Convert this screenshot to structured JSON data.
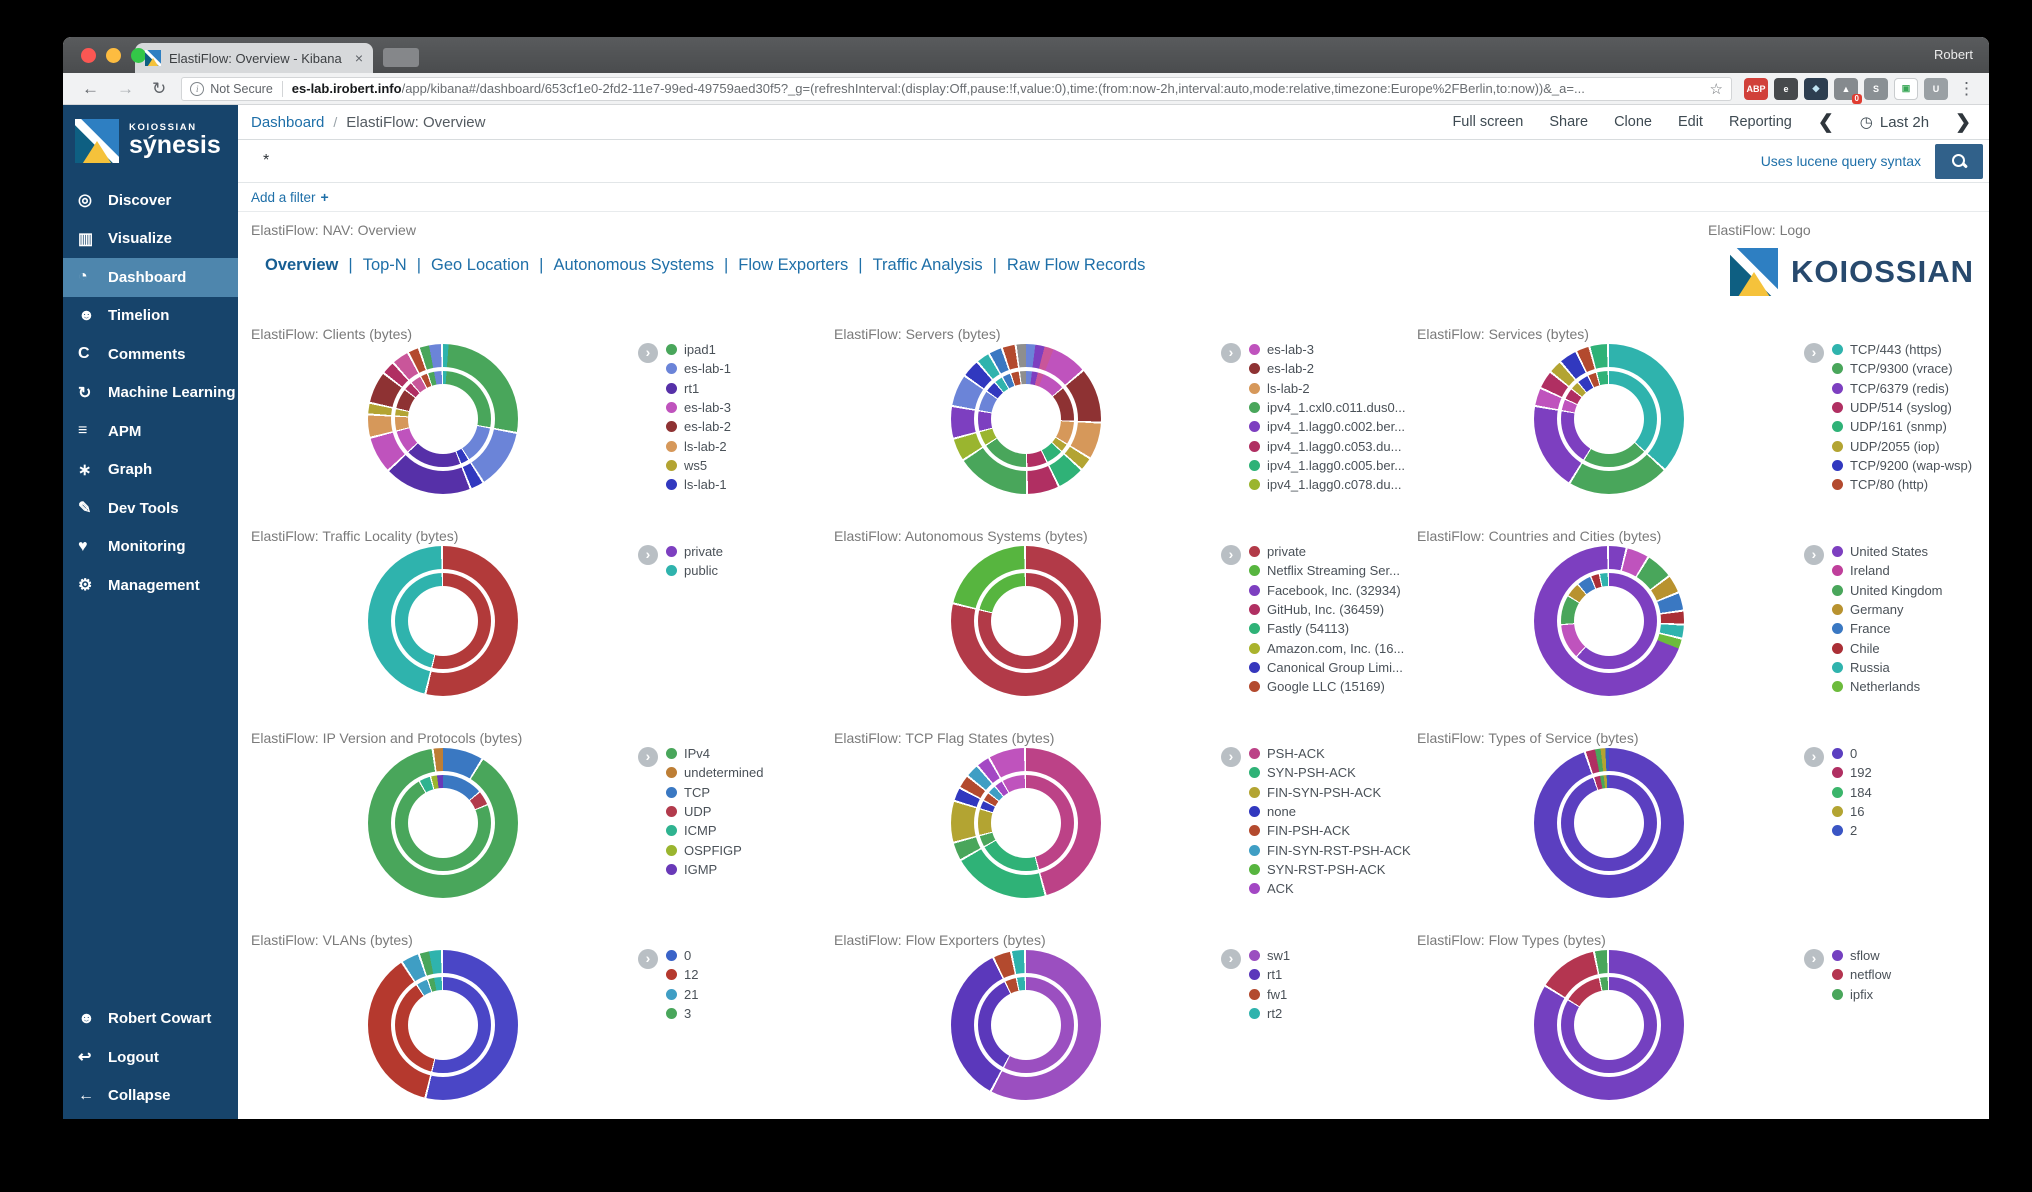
{
  "browser": {
    "tab_title": "ElastiFlow: Overview - Kibana",
    "tab_close": "×",
    "profile_name": "Robert",
    "security_label": "Not Secure",
    "url_host": "es-lab.irobert.info",
    "url_path": "/app/kibana#/dashboard/653cf1e0-2fd2-11e7-99ed-49759aed30f5?_g=(refreshInterval:(display:Off,pause:!f,value:0),time:(from:now-2h,interval:auto,mode:relative,timezone:Europe%2FBerlin,to:now))&_a=...",
    "star_glyph": "☆",
    "back_glyph": "←",
    "forward_glyph": "→",
    "reload_glyph": "↻",
    "menu_glyph": "⋮",
    "extensions": [
      {
        "name": "adblock-plus",
        "bg": "#d1403a",
        "fg": "#ffffff",
        "glyph": "ABP"
      },
      {
        "name": "evernote",
        "bg": "#46494c",
        "fg": "#ffffff",
        "glyph": "e"
      },
      {
        "name": "dark-shield",
        "bg": "#2d3e50",
        "fg": "#bfe3f2",
        "glyph": "◆"
      },
      {
        "name": "badge-zero",
        "bg": "#858a8e",
        "fg": "#ffffff",
        "glyph": "▲",
        "badge": "0"
      },
      {
        "name": "skype",
        "bg": "#8a9094",
        "fg": "#ffffff",
        "glyph": "S"
      },
      {
        "name": "screen-capture",
        "bg": "#ffffff",
        "fg": "#3aa757",
        "glyph": "▣"
      },
      {
        "name": "u-circle",
        "bg": "#9aa0a4",
        "fg": "#ffffff",
        "glyph": "U"
      }
    ]
  },
  "sidebar": {
    "brand_top": "KOIOSSIAN",
    "brand_name": "sýnesis",
    "items": [
      {
        "id": "discover",
        "label": "Discover",
        "glyph": "◎",
        "icon": "discover-icon",
        "active": false
      },
      {
        "id": "visualize",
        "label": "Visualize",
        "glyph": "▥",
        "icon": "visualize-icon",
        "active": false
      },
      {
        "id": "dashboard",
        "label": "Dashboard",
        "glyph": "◔",
        "icon": "dashboard-icon",
        "active": true
      },
      {
        "id": "timelion",
        "label": "Timelion",
        "glyph": "☻",
        "icon": "timelion-icon",
        "active": false
      },
      {
        "id": "comments",
        "label": "Comments",
        "glyph": "C",
        "icon": "comments-icon",
        "active": false
      },
      {
        "id": "machine-learning",
        "label": "Machine Learning",
        "glyph": "↻",
        "icon": "machine-learning-icon",
        "active": false
      },
      {
        "id": "apm",
        "label": "APM",
        "glyph": "≡",
        "icon": "apm-icon",
        "active": false
      },
      {
        "id": "graph",
        "label": "Graph",
        "glyph": "∗",
        "icon": "graph-icon",
        "active": false
      },
      {
        "id": "dev-tools",
        "label": "Dev Tools",
        "glyph": "✎",
        "icon": "dev-tools-icon",
        "active": false
      },
      {
        "id": "monitoring",
        "label": "Monitoring",
        "glyph": "♥",
        "icon": "monitoring-icon",
        "active": false
      },
      {
        "id": "management",
        "label": "Management",
        "glyph": "⚙",
        "icon": "management-icon",
        "active": false
      }
    ],
    "footer": [
      {
        "id": "user",
        "label": "Robert Cowart",
        "glyph": "☻",
        "icon": "user-icon"
      },
      {
        "id": "logout",
        "label": "Logout",
        "glyph": "↩",
        "icon": "logout-icon"
      },
      {
        "id": "collapse",
        "label": "Collapse",
        "glyph": "←",
        "icon": "collapse-icon"
      }
    ]
  },
  "topnav": {
    "breadcrumb_root": "Dashboard",
    "breadcrumb_sep": "/",
    "breadcrumb_current": "ElastiFlow: Overview",
    "actions": [
      "Full screen",
      "Share",
      "Clone",
      "Edit",
      "Reporting"
    ],
    "time_prev": "❮",
    "time_next": "❯",
    "clock_glyph": "◷",
    "time_label": "Last 2h"
  },
  "query": {
    "value": "*",
    "hint": "Uses lucene query syntax"
  },
  "filter": {
    "add_label": "Add a filter",
    "plus": "+"
  },
  "nav_panel": {
    "title": "ElastiFlow: NAV: Overview",
    "active": "Overview",
    "links": [
      "Overview",
      "Top-N",
      "Geo Location",
      "Autonomous Systems",
      "Flow Exporters",
      "Traffic Analysis",
      "Raw Flow Records"
    ]
  },
  "logo_panel": {
    "title": "ElastiFlow: Logo",
    "brand": "KOIOSSIAN"
  },
  "accent_colors": {
    "link_blue": "#1e6fa8",
    "sidebar_navy": "#17446b",
    "sidebar_active": "#4e86ad",
    "search_button": "#31618a"
  },
  "charts": [
    {
      "id": "clients",
      "title": "ElastiFlow: Clients (bytes)",
      "type": "donut",
      "legend": [
        {
          "label": "ipad1",
          "color": "#49a65b"
        },
        {
          "label": "es-lab-1",
          "color": "#6b84d8"
        },
        {
          "label": "rt1",
          "color": "#5630a8"
        },
        {
          "label": "es-lab-3",
          "color": "#bf53bd"
        },
        {
          "label": "es-lab-2",
          "color": "#8e3233"
        },
        {
          "label": "ls-lab-2",
          "color": "#d6985a"
        },
        {
          "label": "ws5",
          "color": "#b3a432"
        },
        {
          "label": "ls-lab-1",
          "color": "#3138bf"
        }
      ],
      "outer": [
        [
          "#2fb3ad",
          1.2
        ],
        [
          "#49a65b",
          27
        ],
        [
          "#6b84d8",
          13
        ],
        [
          "#3138bf",
          3
        ],
        [
          "#5630a8",
          19
        ],
        [
          "#bf53bd",
          8
        ],
        [
          "#d6985a",
          5
        ],
        [
          "#b3a432",
          2.5
        ],
        [
          "#8e3233",
          7
        ],
        [
          "#b02f62",
          3
        ],
        [
          "#c9569a",
          3.8
        ],
        [
          "#b34a2e",
          2.5
        ],
        [
          "#49a65b",
          2
        ],
        [
          "#6b84d8",
          3
        ]
      ]
    },
    {
      "id": "servers",
      "title": "ElastiFlow: Servers (bytes)",
      "type": "donut",
      "legend": [
        {
          "label": "es-lab-3",
          "color": "#bf53bd"
        },
        {
          "label": "es-lab-2",
          "color": "#8e3233"
        },
        {
          "label": "ls-lab-2",
          "color": "#d6985a"
        },
        {
          "label": "ipv4_1.cxl0.c011.dus0...",
          "color": "#49a65b"
        },
        {
          "label": "ipv4_1.lagg0.c002.ber...",
          "color": "#7d3fc0"
        },
        {
          "label": "ipv4_1.lagg0.c053.du...",
          "color": "#b02f62"
        },
        {
          "label": "ipv4_1.lagg0.c005.ber...",
          "color": "#2fb277"
        },
        {
          "label": "ipv4_1.lagg0.c078.du...",
          "color": "#9ab52f"
        }
      ],
      "outer": [
        [
          "#6b84d8",
          2
        ],
        [
          "#7d3fc0",
          2
        ],
        [
          "#c9569a",
          2
        ],
        [
          "#bf53bd",
          8
        ],
        [
          "#8e3233",
          12
        ],
        [
          "#d6985a",
          8
        ],
        [
          "#b3a432",
          3
        ],
        [
          "#2fb277",
          6
        ],
        [
          "#b02f62",
          7
        ],
        [
          "#49a65b",
          16
        ],
        [
          "#9ab52f",
          5
        ],
        [
          "#7d3fc0",
          7
        ],
        [
          "#6b84d8",
          7
        ],
        [
          "#3138bf",
          4
        ],
        [
          "#2fb3ad",
          3
        ],
        [
          "#3a78c2",
          3
        ],
        [
          "#b34a2e",
          3
        ],
        [
          "#8e8e8e",
          2
        ]
      ]
    },
    {
      "id": "services",
      "title": "ElastiFlow: Services (bytes)",
      "type": "donut",
      "legend": [
        {
          "label": "TCP/443 (https)",
          "color": "#2fb3ad"
        },
        {
          "label": "TCP/9300 (vrace)",
          "color": "#49a65b"
        },
        {
          "label": "TCP/6379 (redis)",
          "color": "#7d3fc0"
        },
        {
          "label": "UDP/514 (syslog)",
          "color": "#b02f62"
        },
        {
          "label": "UDP/161 (snmp)",
          "color": "#2fb277"
        },
        {
          "label": "UDP/2055 (iop)",
          "color": "#b3a432"
        },
        {
          "label": "TCP/9200 (wap-wsp)",
          "color": "#3138bf"
        },
        {
          "label": "TCP/80 (http)",
          "color": "#b34a2e"
        }
      ],
      "outer": [
        [
          "#2fb3ad",
          37
        ],
        [
          "#49a65b",
          22
        ],
        [
          "#7d3fc0",
          19
        ],
        [
          "#bf53bd",
          4
        ],
        [
          "#b02f62",
          4
        ],
        [
          "#b3a432",
          3
        ],
        [
          "#3138bf",
          4
        ],
        [
          "#b34a2e",
          3
        ],
        [
          "#2fb277",
          4
        ]
      ]
    },
    {
      "id": "traffic-locality",
      "title": "ElastiFlow: Traffic Locality (bytes)",
      "type": "donut",
      "legend": [
        {
          "label": "private",
          "color": "#7d3fc0"
        },
        {
          "label": "public",
          "color": "#2fb3ad"
        }
      ],
      "outer": [
        [
          "#b23a3a",
          54
        ],
        [
          "#2fb3ad",
          46
        ]
      ]
    },
    {
      "id": "autonomous-systems",
      "title": "ElastiFlow: Autonomous Systems (bytes)",
      "type": "donut",
      "legend": [
        {
          "label": "private",
          "color": "#b23a48"
        },
        {
          "label": "Netflix Streaming Ser...",
          "color": "#57b53f"
        },
        {
          "label": "Facebook, Inc. (32934)",
          "color": "#7d3fc0"
        },
        {
          "label": "GitHub, Inc. (36459)",
          "color": "#b02f62"
        },
        {
          "label": "Fastly (54113)",
          "color": "#2fb277"
        },
        {
          "label": "Amazon.com, Inc. (16...",
          "color": "#aab32d"
        },
        {
          "label": "Canonical Group Limi...",
          "color": "#3637bd"
        },
        {
          "label": "Google LLC (15169)",
          "color": "#b34a2e"
        }
      ],
      "outer": [
        [
          "#b23a48",
          79
        ],
        [
          "#57b53f",
          21
        ]
      ]
    },
    {
      "id": "countries-cities",
      "title": "ElastiFlow: Countries and Cities (bytes)",
      "type": "donut",
      "legend": [
        {
          "label": "United States",
          "color": "#7d3fc0"
        },
        {
          "label": "Ireland",
          "color": "#bf3f9b"
        },
        {
          "label": "United Kingdom",
          "color": "#49a65b"
        },
        {
          "label": "Germany",
          "color": "#b8922f"
        },
        {
          "label": "France",
          "color": "#3a78c2"
        },
        {
          "label": "Chile",
          "color": "#aa2f36"
        },
        {
          "label": "Russia",
          "color": "#2fb3ad"
        },
        {
          "label": "Netherlands",
          "color": "#6cbb3c"
        }
      ],
      "outer": [
        [
          "#7d3fc0",
          4
        ],
        [
          "#bf53bd",
          5
        ],
        [
          "#49a65b",
          6
        ],
        [
          "#b8922f",
          4
        ],
        [
          "#3a78c2",
          4
        ],
        [
          "#aa2f36",
          3
        ],
        [
          "#2fb3ad",
          3
        ],
        [
          "#6cbb3c",
          2
        ],
        [
          "#7d3fc0",
          69
        ]
      ],
      "inner": [
        [
          "#7d3fc0",
          62
        ],
        [
          "#bf53bd",
          12
        ],
        [
          "#49a65b",
          10
        ],
        [
          "#b8922f",
          5
        ],
        [
          "#3a78c2",
          5
        ],
        [
          "#aa2f36",
          3
        ],
        [
          "#2fb3ad",
          3
        ]
      ]
    },
    {
      "id": "ip-protocols",
      "title": "ElastiFlow: IP Version and Protocols (bytes)",
      "type": "donut",
      "legend": [
        {
          "label": "IPv4",
          "color": "#49a65b"
        },
        {
          "label": "undetermined",
          "color": "#bd7e35"
        },
        {
          "label": "TCP",
          "color": "#3a78c2"
        },
        {
          "label": "UDP",
          "color": "#b23a4c"
        },
        {
          "label": "ICMP",
          "color": "#2fb390"
        },
        {
          "label": "OSPFIGP",
          "color": "#9ab52f"
        },
        {
          "label": "IGMP",
          "color": "#6939b8"
        }
      ],
      "outer": [
        [
          "#3a78c2",
          9
        ],
        [
          "#49a65b",
          89
        ],
        [
          "#bd7e35",
          2
        ]
      ],
      "inner": [
        [
          "#3a78c2",
          14
        ],
        [
          "#b23a4c",
          5
        ],
        [
          "#49a65b",
          73
        ],
        [
          "#2fb390",
          4
        ],
        [
          "#9ab52f",
          2
        ],
        [
          "#6939b8",
          2
        ]
      ]
    },
    {
      "id": "tcp-flags",
      "title": "ElastiFlow: TCP Flag States (bytes)",
      "type": "donut",
      "legend": [
        {
          "label": "PSH-ACK",
          "color": "#bc4287"
        },
        {
          "label": "SYN-PSH-ACK",
          "color": "#2fb277"
        },
        {
          "label": "FIN-SYN-PSH-ACK",
          "color": "#b3a432"
        },
        {
          "label": "none",
          "color": "#3138bf"
        },
        {
          "label": "FIN-PSH-ACK",
          "color": "#b34a2e"
        },
        {
          "label": "FIN-SYN-RST-PSH-ACK",
          "color": "#3f9ec4"
        },
        {
          "label": "SYN-RST-PSH-ACK",
          "color": "#57b53f"
        },
        {
          "label": "ACK",
          "color": "#a347c4"
        }
      ],
      "outer": [
        [
          "#bc4287",
          46
        ],
        [
          "#2fb277",
          21
        ],
        [
          "#49a65b",
          4
        ],
        [
          "#b3a432",
          9
        ],
        [
          "#3138bf",
          3
        ],
        [
          "#b34a2e",
          3
        ],
        [
          "#3f9ec4",
          3
        ],
        [
          "#a347c4",
          3
        ],
        [
          "#bf53bd",
          8
        ]
      ]
    },
    {
      "id": "tos",
      "title": "ElastiFlow: Types of Service (bytes)",
      "type": "donut",
      "legend": [
        {
          "label": "0",
          "color": "#5b3fc0"
        },
        {
          "label": "192",
          "color": "#b02f62"
        },
        {
          "label": "184",
          "color": "#3bb56b"
        },
        {
          "label": "16",
          "color": "#b3a432"
        },
        {
          "label": "2",
          "color": "#3a55c4"
        }
      ],
      "outer": [
        [
          "#5b3fc0",
          95
        ],
        [
          "#b02f62",
          2
        ],
        [
          "#49a65b",
          1.2
        ],
        [
          "#b3a432",
          1
        ],
        [
          "#3a55c4",
          0.8
        ]
      ]
    },
    {
      "id": "vlans",
      "title": "ElastiFlow: VLANs (bytes)",
      "type": "donut",
      "legend": [
        {
          "label": "0",
          "color": "#3a63c8"
        },
        {
          "label": "12",
          "color": "#b5392e"
        },
        {
          "label": "21",
          "color": "#3f9ec4"
        },
        {
          "label": "3",
          "color": "#49a65b"
        }
      ],
      "outer": [
        [
          "#4a46c6",
          54
        ],
        [
          "#b5392e",
          37
        ],
        [
          "#3f9ec4",
          4
        ],
        [
          "#49a65b",
          2
        ],
        [
          "#2fb3ad",
          3
        ]
      ]
    },
    {
      "id": "flow-exporters",
      "title": "ElastiFlow: Flow Exporters (bytes)",
      "type": "donut",
      "legend": [
        {
          "label": "sw1",
          "color": "#9b4fc0"
        },
        {
          "label": "rt1",
          "color": "#5b38bb"
        },
        {
          "label": "fw1",
          "color": "#b34a2e"
        },
        {
          "label": "rt2",
          "color": "#2fb3ad"
        }
      ],
      "outer": [
        [
          "#9b4fc0",
          58
        ],
        [
          "#5b38bb",
          35
        ],
        [
          "#b34a2e",
          4
        ],
        [
          "#2fb3ad",
          3
        ]
      ]
    },
    {
      "id": "flow-types",
      "title": "ElastiFlow: Flow Types (bytes)",
      "type": "donut",
      "legend": [
        {
          "label": "sflow",
          "color": "#7440c0"
        },
        {
          "label": "netflow",
          "color": "#b43550"
        },
        {
          "label": "ipfix",
          "color": "#49a65b"
        }
      ],
      "outer": [
        [
          "#7440c0",
          84
        ],
        [
          "#b43550",
          13
        ],
        [
          "#49a65b",
          3
        ]
      ]
    }
  ]
}
